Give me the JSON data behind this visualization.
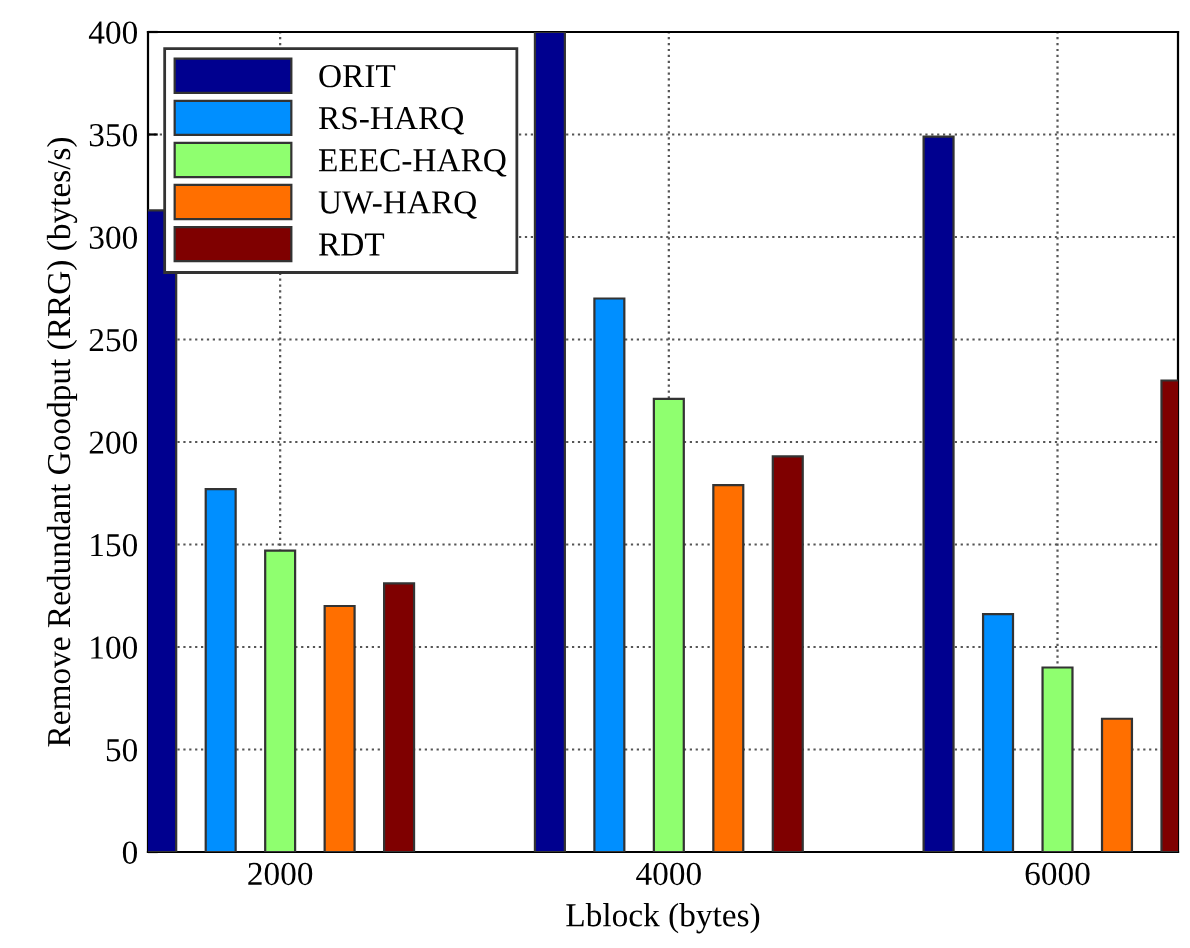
{
  "chart_data": {
    "type": "bar",
    "xlabel": "Lblock (bytes)",
    "ylabel": "Remove Redundant Goodput (RRG) (bytes/s)",
    "categories": [
      "2000",
      "4000",
      "6000"
    ],
    "series": [
      {
        "name": "ORIT",
        "color": "#00008f",
        "values": [
          313,
          400,
          349
        ]
      },
      {
        "name": "RS-HARQ",
        "color": "#008fff",
        "values": [
          177,
          270,
          116
        ]
      },
      {
        "name": "EEEC-HARQ",
        "color": "#8fff6f",
        "values": [
          147,
          221,
          90
        ]
      },
      {
        "name": "UW-HARQ",
        "color": "#ff6f00",
        "values": [
          120,
          179,
          65
        ]
      },
      {
        "name": "RDT",
        "color": "#7f0000",
        "values": [
          131,
          193,
          230
        ]
      }
    ],
    "ylim": [
      0,
      400
    ],
    "yticks": [
      0,
      50,
      100,
      150,
      200,
      250,
      300,
      350,
      400
    ],
    "grid": true,
    "legend": "top left"
  }
}
